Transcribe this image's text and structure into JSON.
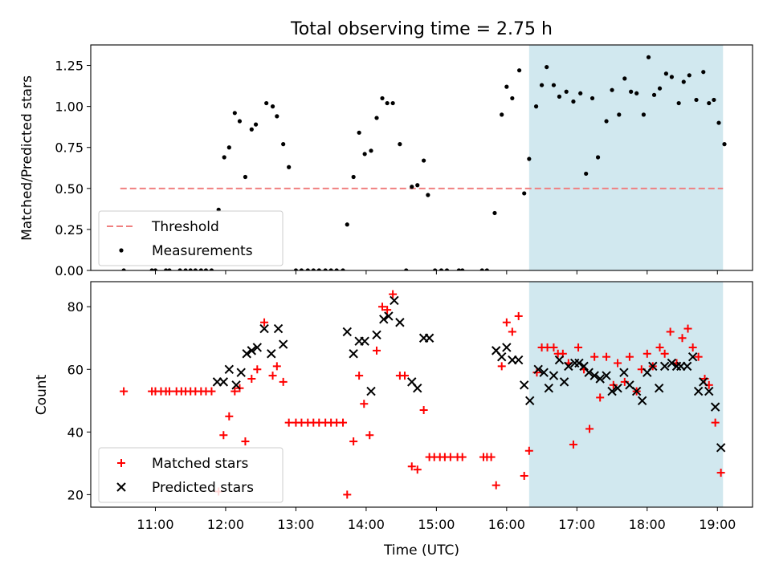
{
  "figure": {
    "title": "Total observing time = 2.75 h",
    "xlabel": "Time (UTC)",
    "x_ticks": [
      "11:00",
      "12:00",
      "13:00",
      "14:00",
      "15:00",
      "16:00",
      "17:00",
      "18:00",
      "19:00"
    ],
    "x_tick_hours": [
      11,
      12,
      13,
      14,
      15,
      16,
      17,
      18,
      19
    ],
    "xlim_hours": [
      10.08,
      19.5
    ],
    "highlight_span_hours": [
      16.32,
      19.08
    ],
    "highlight_color": "#d1e8ef"
  },
  "chart_data": [
    {
      "type": "scatter",
      "ylabel": "Matched/Predicted stars",
      "ylim": [
        0,
        1.375
      ],
      "y_ticks": [
        "0.00",
        "0.25",
        "0.50",
        "0.75",
        "1.00",
        "1.25"
      ],
      "y_tick_values": [
        0,
        0.25,
        0.5,
        0.75,
        1.0,
        1.25
      ],
      "threshold": {
        "name": "Threshold",
        "value": 0.5,
        "color": "#f08080",
        "style": "dashed",
        "x_range_hours": [
          10.5,
          19.08
        ]
      },
      "legend": {
        "placement": "lower-left",
        "entries": [
          "Threshold",
          "Measurements"
        ]
      },
      "series": [
        {
          "name": "Measurements",
          "color": "#000000",
          "marker": "dot",
          "x_hours": [
            10.55,
            10.95,
            11.0,
            11.15,
            11.2,
            11.35,
            11.43,
            11.5,
            11.57,
            11.65,
            11.72,
            11.8,
            11.9,
            11.98,
            12.05,
            12.13,
            12.2,
            12.28,
            12.37,
            12.43,
            12.58,
            12.67,
            12.73,
            12.82,
            12.9,
            13.0,
            13.08,
            13.17,
            13.25,
            13.33,
            13.42,
            13.5,
            13.58,
            13.67,
            13.73,
            13.82,
            13.9,
            13.98,
            14.07,
            14.15,
            14.23,
            14.3,
            14.38,
            14.48,
            14.57,
            14.65,
            14.73,
            14.82,
            14.88,
            14.98,
            15.07,
            15.15,
            15.32,
            15.37,
            15.65,
            15.72,
            15.83,
            15.93,
            16.0,
            16.08,
            16.18,
            16.25,
            16.32,
            16.42,
            16.5,
            16.57,
            16.67,
            16.75,
            16.85,
            16.95,
            17.05,
            17.13,
            17.22,
            17.3,
            17.42,
            17.5,
            17.6,
            17.68,
            17.77,
            17.85,
            17.95,
            18.02,
            18.1,
            18.18,
            18.27,
            18.35,
            18.45,
            18.52,
            18.6,
            18.7,
            18.8,
            18.88,
            18.95,
            19.02,
            19.1
          ],
          "y": [
            0,
            0,
            0,
            0,
            0,
            0,
            0,
            0,
            0,
            0,
            0,
            0,
            0.37,
            0.69,
            0.75,
            0.96,
            0.91,
            0.57,
            0.86,
            0.89,
            1.02,
            1.0,
            0.94,
            0.77,
            0.63,
            0,
            0,
            0,
            0,
            0,
            0,
            0,
            0,
            0,
            0.28,
            0.57,
            0.84,
            0.71,
            0.73,
            0.93,
            1.05,
            1.02,
            1.02,
            0.77,
            0,
            0.51,
            0.52,
            0.67,
            0.46,
            0,
            0,
            0,
            0,
            0,
            0,
            0,
            0.35,
            0.95,
            1.12,
            1.05,
            1.22,
            0.47,
            0.68,
            1.0,
            1.13,
            1.24,
            1.13,
            1.06,
            1.09,
            1.03,
            1.08,
            0.59,
            1.05,
            0.69,
            0.91,
            1.1,
            0.95,
            1.17,
            1.09,
            1.08,
            0.95,
            1.3,
            1.07,
            1.11,
            1.2,
            1.18,
            1.02,
            1.15,
            1.19,
            1.04,
            1.21,
            1.02,
            1.04,
            0.9,
            0.77
          ]
        }
      ]
    },
    {
      "type": "scatter",
      "ylabel": "Count",
      "ylim": [
        16,
        88
      ],
      "y_ticks": [
        "20",
        "40",
        "60",
        "80"
      ],
      "y_tick_values": [
        20,
        40,
        60,
        80
      ],
      "legend": {
        "placement": "lower-left",
        "entries": [
          "Matched stars",
          "Predicted stars"
        ]
      },
      "series": [
        {
          "name": "Matched stars",
          "color": "#ff0000",
          "marker": "plus",
          "x_hours": [
            10.55,
            10.95,
            11.0,
            11.08,
            11.15,
            11.2,
            11.3,
            11.37,
            11.43,
            11.5,
            11.57,
            11.65,
            11.72,
            11.8,
            11.9,
            11.97,
            12.05,
            12.13,
            12.2,
            12.28,
            12.37,
            12.45,
            12.55,
            12.67,
            12.73,
            12.82,
            12.9,
            13.0,
            13.08,
            13.17,
            13.25,
            13.33,
            13.42,
            13.5,
            13.58,
            13.67,
            13.73,
            13.82,
            13.9,
            13.97,
            14.05,
            14.15,
            14.23,
            14.3,
            14.38,
            14.48,
            14.55,
            14.65,
            14.73,
            14.82,
            14.9,
            14.97,
            15.05,
            15.12,
            15.2,
            15.3,
            15.37,
            15.67,
            15.72,
            15.78,
            15.85,
            15.93,
            16.0,
            16.08,
            16.17,
            16.25,
            16.32,
            16.43,
            16.5,
            16.58,
            16.67,
            16.73,
            16.8,
            16.88,
            16.95,
            17.02,
            17.1,
            17.18,
            17.25,
            17.33,
            17.42,
            17.52,
            17.58,
            17.68,
            17.75,
            17.85,
            17.92,
            18.0,
            18.08,
            18.18,
            18.25,
            18.33,
            18.42,
            18.5,
            18.58,
            18.65,
            18.73,
            18.82,
            18.88,
            18.97,
            19.05
          ],
          "y": [
            53,
            53,
            53,
            53,
            53,
            53,
            53,
            53,
            53,
            53,
            53,
            53,
            53,
            53,
            21,
            39,
            45,
            53,
            54,
            37,
            57,
            60,
            75,
            58,
            61,
            56,
            43,
            43,
            43,
            43,
            43,
            43,
            43,
            43,
            43,
            43,
            20,
            37,
            58,
            49,
            39,
            66,
            80,
            79,
            84,
            58,
            58,
            29,
            28,
            47,
            32,
            32,
            32,
            32,
            32,
            32,
            32,
            32,
            32,
            32,
            23,
            61,
            75,
            72,
            77,
            26,
            34,
            59,
            67,
            67,
            67,
            65,
            65,
            62,
            36,
            67,
            60,
            41,
            64,
            51,
            64,
            55,
            62,
            56,
            64,
            53,
            60,
            65,
            61,
            67,
            65,
            72,
            62,
            70,
            73,
            67,
            64,
            57,
            55,
            43,
            27
          ]
        },
        {
          "name": "Predicted stars",
          "color": "#000000",
          "marker": "cross",
          "x_hours": [
            11.88,
            11.97,
            12.05,
            12.15,
            12.22,
            12.3,
            12.37,
            12.45,
            12.55,
            12.65,
            12.75,
            12.82,
            13.73,
            13.82,
            13.9,
            13.98,
            14.07,
            14.15,
            14.25,
            14.32,
            14.4,
            14.48,
            14.65,
            14.73,
            14.82,
            14.9,
            15.85,
            15.93,
            16.0,
            16.08,
            16.17,
            16.25,
            16.33,
            16.45,
            16.53,
            16.6,
            16.67,
            16.75,
            16.82,
            16.88,
            16.97,
            17.03,
            17.1,
            17.17,
            17.25,
            17.33,
            17.42,
            17.5,
            17.58,
            17.67,
            17.75,
            17.85,
            17.93,
            18.0,
            18.08,
            18.17,
            18.25,
            18.35,
            18.42,
            18.48,
            18.57,
            18.65,
            18.73,
            18.8,
            18.88,
            18.97,
            19.05
          ],
          "y": [
            56,
            56,
            60,
            55,
            59,
            65,
            66,
            67,
            73,
            65,
            73,
            68,
            72,
            65,
            69,
            69,
            53,
            71,
            76,
            77,
            82,
            75,
            56,
            54,
            70,
            70,
            66,
            64,
            67,
            63,
            63,
            55,
            50,
            60,
            59,
            54,
            58,
            63,
            56,
            61,
            62,
            62,
            61,
            59,
            58,
            57,
            58,
            53,
            54,
            59,
            55,
            53,
            50,
            59,
            61,
            54,
            61,
            62,
            61,
            61,
            61,
            64,
            53,
            56,
            53,
            48,
            35
          ]
        }
      ]
    }
  ]
}
